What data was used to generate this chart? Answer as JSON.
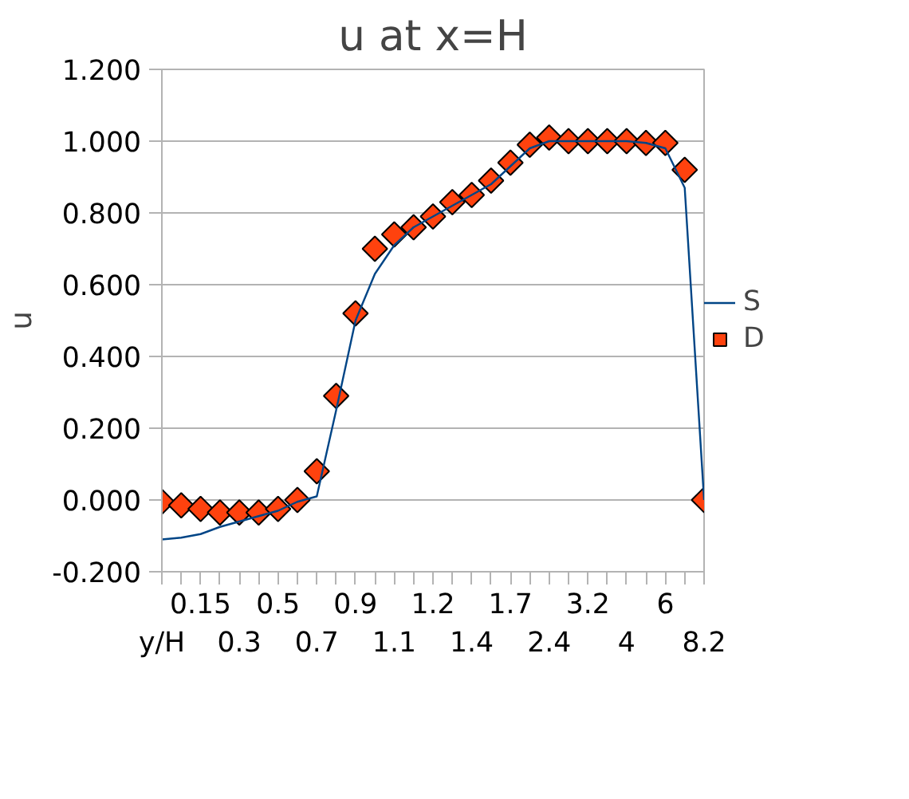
{
  "chart_data": {
    "type": "line",
    "title": "u at x=H",
    "ylabel": "u",
    "categories": [
      "y/H",
      null,
      "0.15",
      null,
      "0.3",
      null,
      "0.5",
      null,
      "0.7",
      null,
      "0.9",
      null,
      "1.1",
      null,
      "1.2",
      null,
      "1.4",
      null,
      "1.7",
      null,
      "2.4",
      null,
      "3.2",
      null,
      "4",
      null,
      "6",
      null,
      "8.2"
    ],
    "series": [
      {
        "name": "S",
        "color": "#004586",
        "marker": "none",
        "values": [
          -0.11,
          -0.105,
          -0.095,
          -0.075,
          -0.06,
          -0.045,
          -0.03,
          -0.005,
          0.01,
          0.25,
          0.5,
          0.63,
          0.71,
          0.76,
          0.79,
          0.82,
          0.85,
          0.88,
          0.93,
          0.98,
          1.0,
          1.0,
          1.0,
          1.0,
          1.0,
          0.995,
          0.98,
          0.87,
          0.0
        ]
      },
      {
        "name": "D",
        "type": "scatter",
        "color": "#ff420e",
        "marker": "diamond",
        "values": [
          -0.005,
          -0.015,
          -0.025,
          -0.035,
          -0.035,
          -0.035,
          -0.025,
          0.0,
          0.08,
          0.29,
          0.52,
          0.7,
          0.74,
          0.76,
          0.79,
          0.83,
          0.85,
          0.89,
          0.94,
          0.99,
          1.01,
          1.0,
          1.0,
          1.0,
          1.0,
          0.995,
          0.995,
          0.92,
          0.0
        ]
      }
    ],
    "ylim": [
      -0.2,
      1.2
    ],
    "yticks": [
      {
        "value": -0.2,
        "label": "-0.200"
      },
      {
        "value": 0,
        "label": "0.000"
      },
      {
        "value": 0.2,
        "label": "0.200"
      },
      {
        "value": 0.4,
        "label": "0.400"
      },
      {
        "value": 0.6,
        "label": "0.600"
      },
      {
        "value": 0.8,
        "label": "0.800"
      },
      {
        "value": 1.0,
        "label": "1.000"
      },
      {
        "value": 1.2,
        "label": "1.200"
      }
    ],
    "grid": "y",
    "legend": "right"
  }
}
